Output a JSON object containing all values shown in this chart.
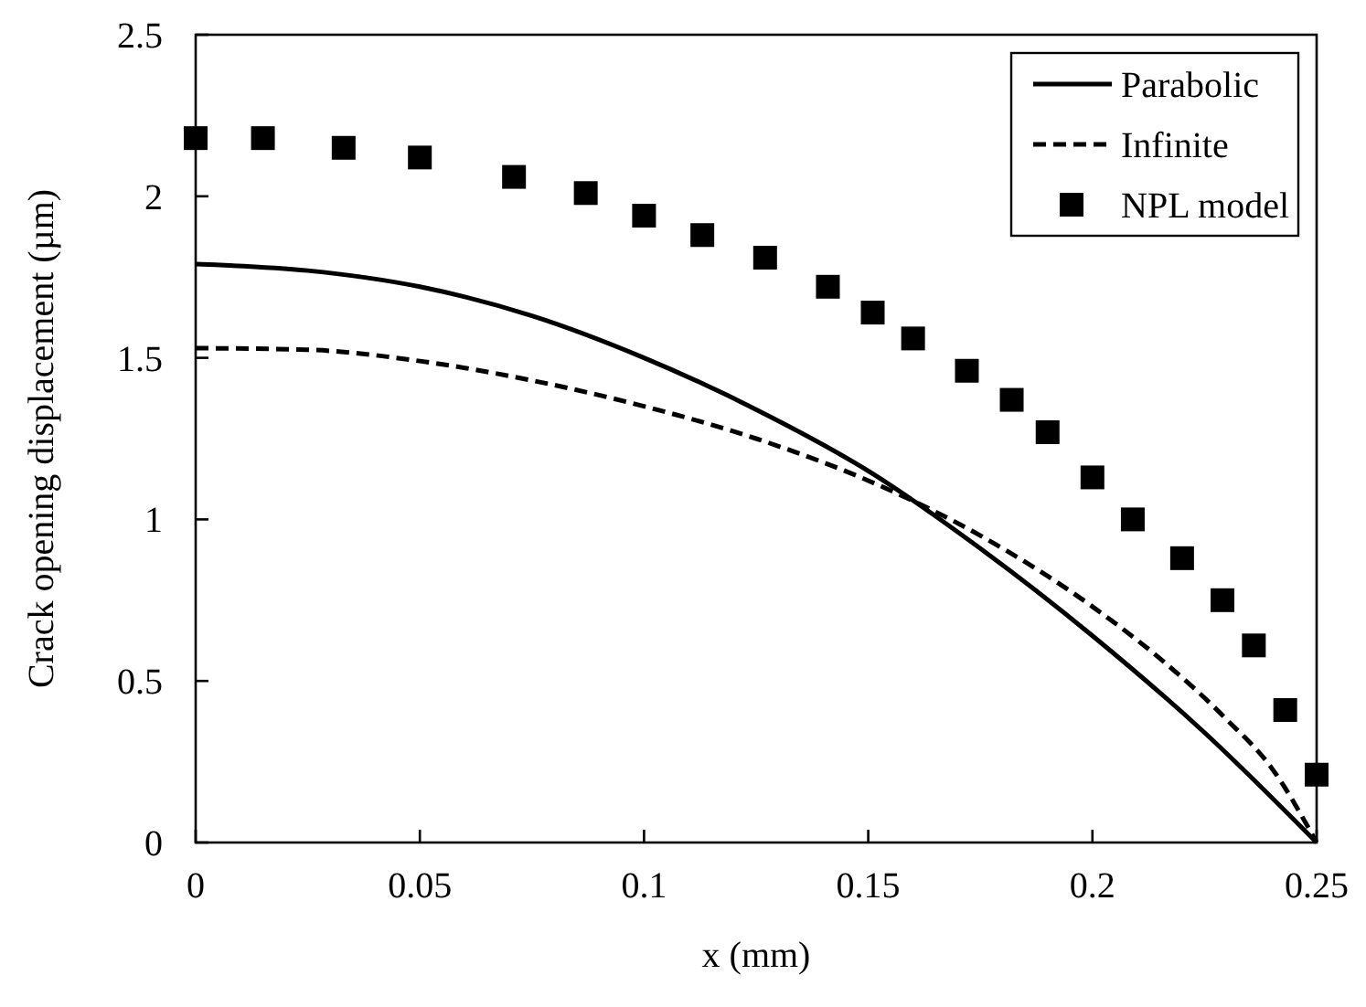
{
  "chart_data": {
    "type": "line",
    "xlabel": "x (mm)",
    "ylabel": "Crack opening displacement (µm)",
    "xlim": [
      0,
      0.25
    ],
    "ylim": [
      0,
      2.5
    ],
    "xticks": [
      0,
      0.05,
      0.1,
      0.15,
      0.2,
      0.25
    ],
    "yticks": [
      0,
      0.5,
      1,
      1.5,
      2,
      2.5
    ],
    "grid": false,
    "legend": "top right",
    "x": [
      0,
      0.025,
      0.05,
      0.075,
      0.1,
      0.125,
      0.15,
      0.175,
      0.2,
      0.225,
      0.25
    ],
    "series": [
      {
        "name": "Parabolic",
        "color": "#000000",
        "line_style": "solid",
        "values": [
          1.79,
          1.77,
          1.72,
          1.63,
          1.5,
          1.34,
          1.15,
          0.91,
          0.64,
          0.34,
          0
        ]
      },
      {
        "name": "Infinite",
        "color": "#000000",
        "line_style": "dashed",
        "x": [
          0,
          0.025,
          0.05,
          0.075,
          0.1,
          0.125,
          0.15,
          0.175,
          0.2,
          0.215,
          0.23,
          0.24,
          0.25
        ],
        "values": [
          1.53,
          1.525,
          1.49,
          1.43,
          1.35,
          1.25,
          1.12,
          0.95,
          0.73,
          0.57,
          0.38,
          0.23,
          0
        ]
      },
      {
        "name": "NPL model",
        "type": "scatter",
        "color": "#000000",
        "marker": "square",
        "x": [
          0,
          0.015,
          0.033,
          0.05,
          0.071,
          0.087,
          0.1,
          0.113,
          0.127,
          0.141,
          0.151,
          0.16,
          0.172,
          0.182,
          0.19,
          0.2,
          0.209,
          0.22,
          0.229,
          0.236,
          0.243,
          0.25
        ],
        "values": [
          2.18,
          2.18,
          2.15,
          2.12,
          2.06,
          2.01,
          1.94,
          1.88,
          1.81,
          1.72,
          1.64,
          1.56,
          1.46,
          1.37,
          1.27,
          1.13,
          1.0,
          0.88,
          0.75,
          0.61,
          0.41,
          0.21
        ]
      }
    ]
  }
}
